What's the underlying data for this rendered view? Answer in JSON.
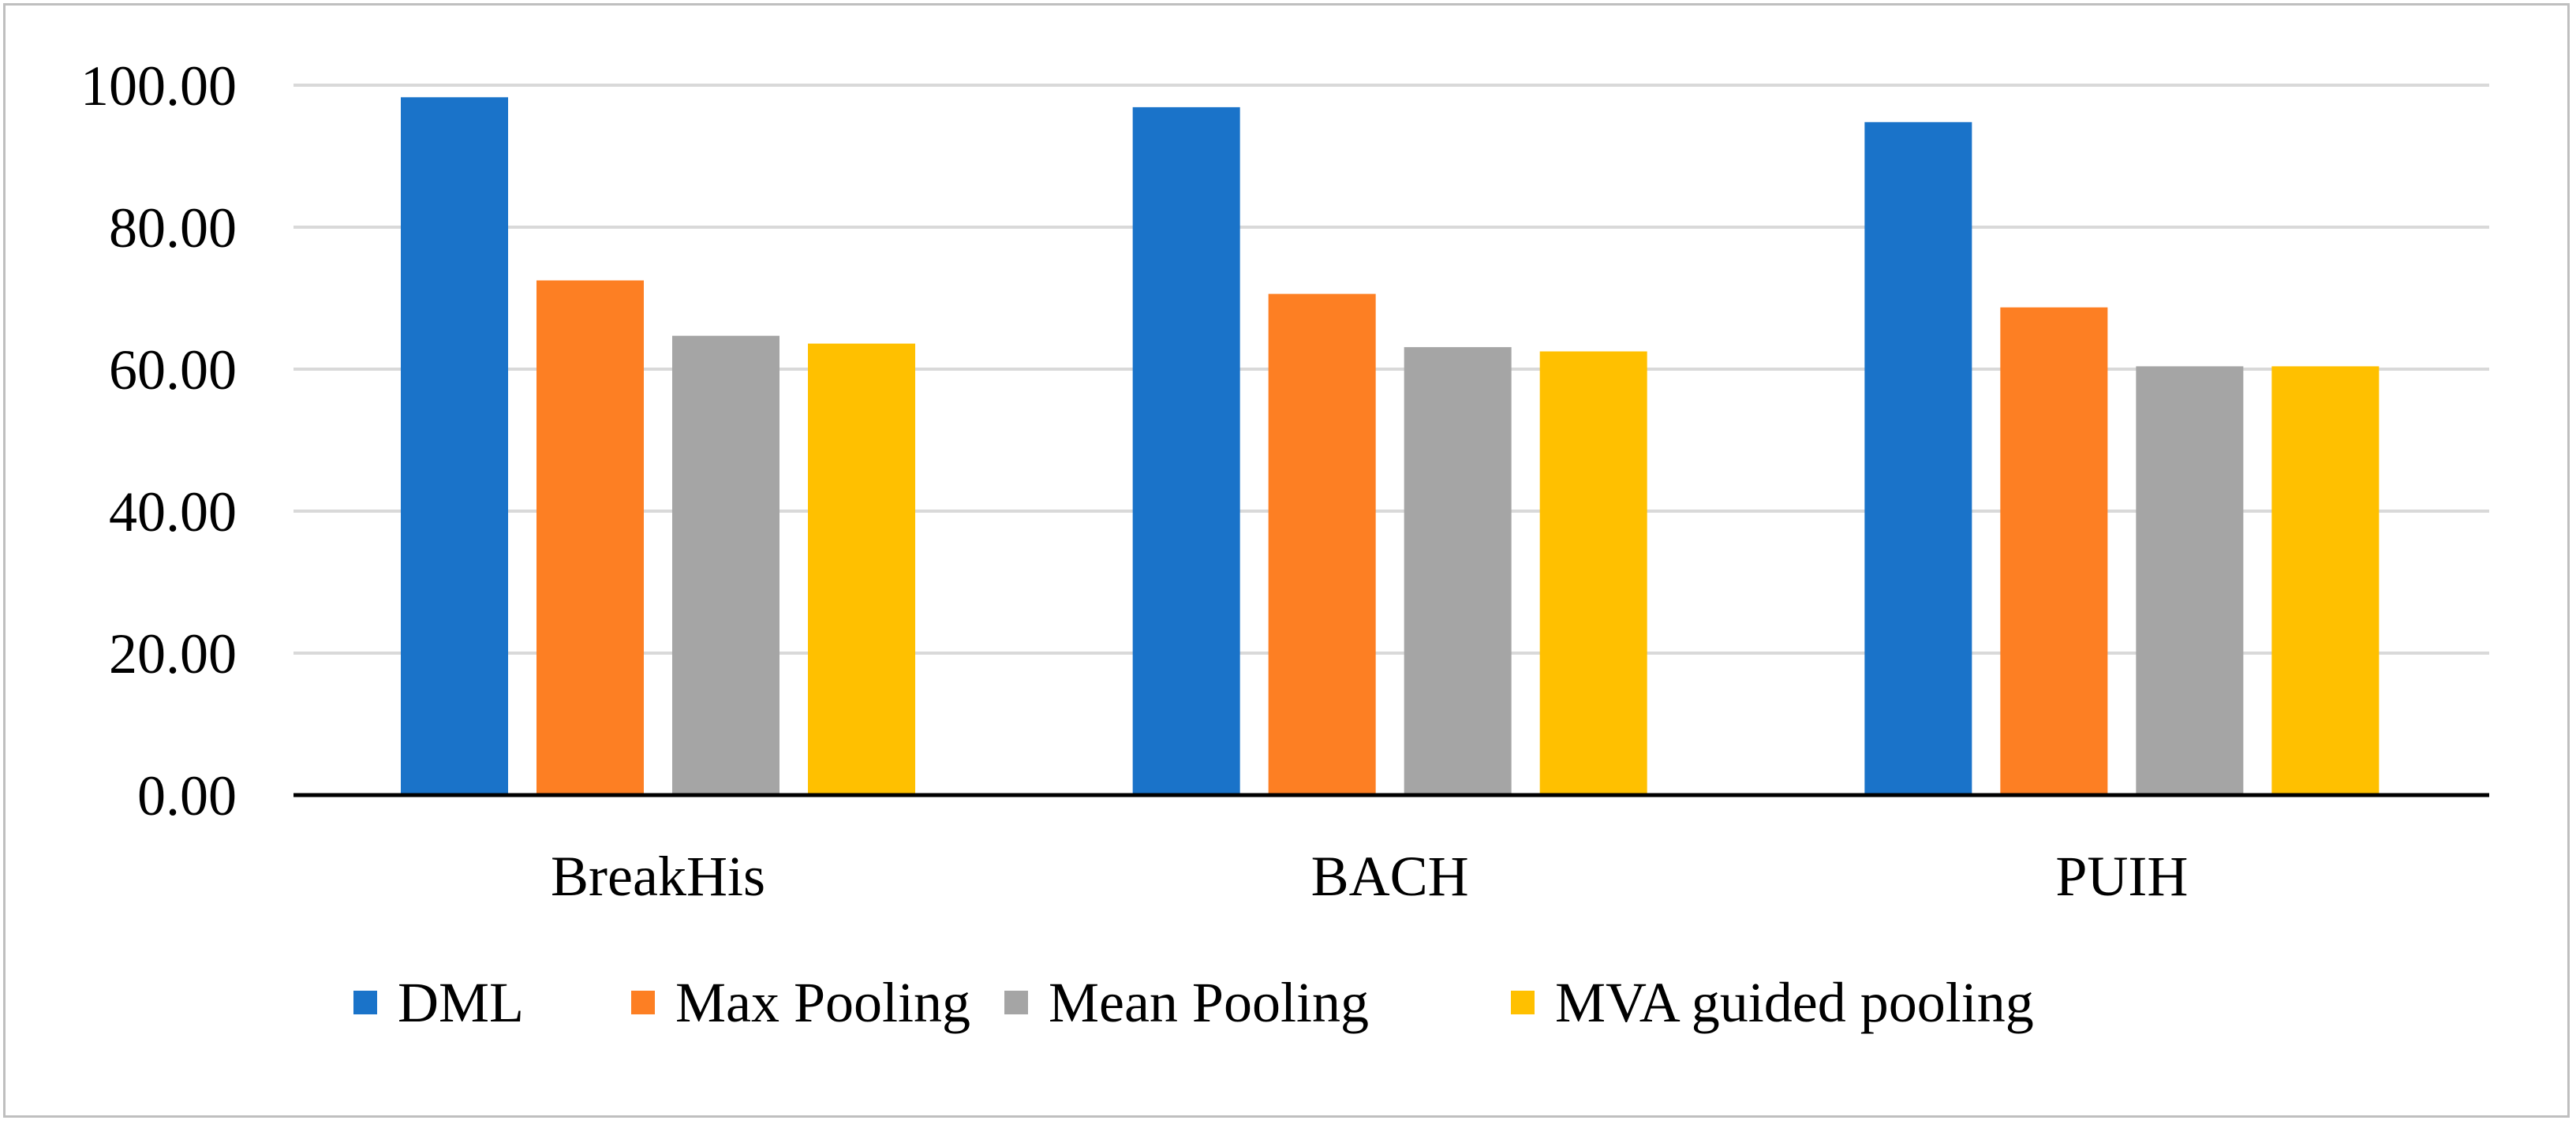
{
  "chart_data": {
    "type": "bar",
    "title": "",
    "xlabel": "",
    "ylabel": "",
    "categories": [
      "BreakHis",
      "BACH",
      "PUIH"
    ],
    "series": [
      {
        "name": "DML",
        "color": "#1a73c9",
        "values": [
          98.3,
          96.9,
          94.8
        ]
      },
      {
        "name": "Max Pooling",
        "color": "#fd7f23",
        "values": [
          72.5,
          70.6,
          68.7
        ]
      },
      {
        "name": "Mean Pooling",
        "color": "#a5a5a5",
        "values": [
          64.7,
          63.1,
          60.4
        ]
      },
      {
        "name": "MVA guided pooling",
        "color": "#ffc000",
        "values": [
          63.6,
          62.5,
          60.4
        ]
      }
    ],
    "ylim": [
      0,
      100
    ],
    "yticks": [
      "0.00",
      "20.00",
      "40.00",
      "60.00",
      "80.00",
      "100.00"
    ],
    "grid": true,
    "legend_position": "bottom"
  }
}
